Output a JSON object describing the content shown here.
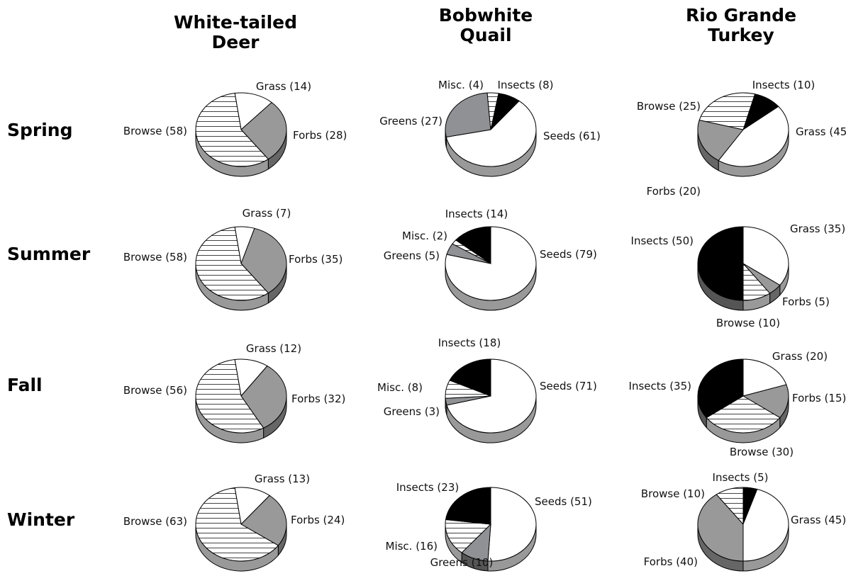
{
  "columns": [
    "White-tailed Deer",
    "Bobwhite Quail",
    "Rio Grande Turkey"
  ],
  "rows": [
    "Spring",
    "Summer",
    "Fall",
    "Winter"
  ],
  "colors": {
    "Grass": "#ffffff",
    "Forbs": "#999999",
    "Browse": "hatch",
    "Seeds": "#ffffff",
    "Insects": "#000000",
    "Misc.": "hatch",
    "Greens": "#8f9194",
    "outline": "#000000",
    "hatch_line": "#444444"
  },
  "chart_data": [
    {
      "type": "pie",
      "animal": "White-tailed Deer",
      "season": "Spring",
      "slices": [
        {
          "label": "Grass",
          "value": 14
        },
        {
          "label": "Forbs",
          "value": 28
        },
        {
          "label": "Browse",
          "value": 58
        }
      ]
    },
    {
      "type": "pie",
      "animal": "Bobwhite Quail",
      "season": "Spring",
      "slices": [
        {
          "label": "Insects",
          "value": 8
        },
        {
          "label": "Seeds",
          "value": 61
        },
        {
          "label": "Greens",
          "value": 27
        },
        {
          "label": "Misc.",
          "value": 4
        }
      ]
    },
    {
      "type": "pie",
      "animal": "Rio Grande Turkey",
      "season": "Spring",
      "slices": [
        {
          "label": "Insects",
          "value": 10
        },
        {
          "label": "Grass",
          "value": 45
        },
        {
          "label": "Forbs",
          "value": 20
        },
        {
          "label": "Browse",
          "value": 25
        }
      ]
    },
    {
      "type": "pie",
      "animal": "White-tailed Deer",
      "season": "Summer",
      "slices": [
        {
          "label": "Grass",
          "value": 7
        },
        {
          "label": "Forbs",
          "value": 35
        },
        {
          "label": "Browse",
          "value": 58
        }
      ]
    },
    {
      "type": "pie",
      "animal": "Bobwhite Quail",
      "season": "Summer",
      "slices": [
        {
          "label": "Seeds",
          "value": 79
        },
        {
          "label": "Greens",
          "value": 5
        },
        {
          "label": "Misc.",
          "value": 2
        },
        {
          "label": "Insects",
          "value": 14
        }
      ]
    },
    {
      "type": "pie",
      "animal": "Rio Grande Turkey",
      "season": "Summer",
      "slices": [
        {
          "label": "Grass",
          "value": 35
        },
        {
          "label": "Forbs",
          "value": 5
        },
        {
          "label": "Browse",
          "value": 10
        },
        {
          "label": "Insects",
          "value": 50
        }
      ]
    },
    {
      "type": "pie",
      "animal": "White-tailed Deer",
      "season": "Fall",
      "slices": [
        {
          "label": "Grass",
          "value": 12
        },
        {
          "label": "Forbs",
          "value": 32
        },
        {
          "label": "Browse",
          "value": 56
        }
      ]
    },
    {
      "type": "pie",
      "animal": "Bobwhite Quail",
      "season": "Fall",
      "slices": [
        {
          "label": "Seeds",
          "value": 71
        },
        {
          "label": "Greens",
          "value": 3
        },
        {
          "label": "Misc.",
          "value": 8
        },
        {
          "label": "Insects",
          "value": 18
        }
      ]
    },
    {
      "type": "pie",
      "animal": "Rio Grande Turkey",
      "season": "Fall",
      "slices": [
        {
          "label": "Grass",
          "value": 20
        },
        {
          "label": "Forbs",
          "value": 15
        },
        {
          "label": "Browse",
          "value": 30
        },
        {
          "label": "Insects",
          "value": 35
        }
      ]
    },
    {
      "type": "pie",
      "animal": "White-tailed Deer",
      "season": "Winter",
      "slices": [
        {
          "label": "Grass",
          "value": 13
        },
        {
          "label": "Forbs",
          "value": 24
        },
        {
          "label": "Browse",
          "value": 63
        }
      ]
    },
    {
      "type": "pie",
      "animal": "Bobwhite Quail",
      "season": "Winter",
      "slices": [
        {
          "label": "Seeds",
          "value": 51
        },
        {
          "label": "Greens",
          "value": 10
        },
        {
          "label": "Misc.",
          "value": 16
        },
        {
          "label": "Insects",
          "value": 23
        }
      ]
    },
    {
      "type": "pie",
      "animal": "Rio Grande Turkey",
      "season": "Winter",
      "slices": [
        {
          "label": "Grass",
          "value": 45
        },
        {
          "label": "Forbs",
          "value": 40
        },
        {
          "label": "Browse",
          "value": 10
        },
        {
          "label": "Insects",
          "value": 5
        }
      ]
    }
  ]
}
